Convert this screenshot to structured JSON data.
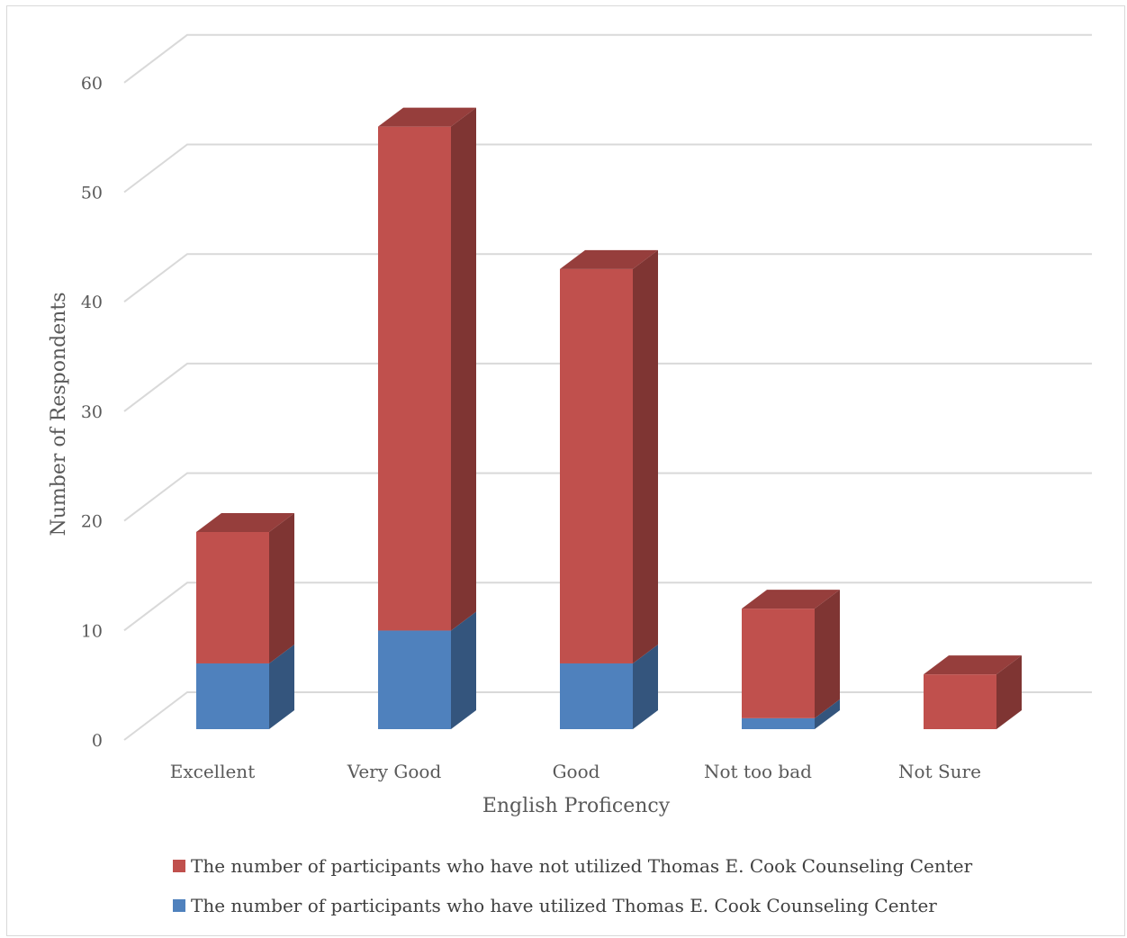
{
  "chart_data": {
    "type": "bar",
    "stacked": true,
    "three_d": true,
    "categories": [
      "Excellent",
      "Very Good",
      "Good",
      "Not too bad",
      "Not Sure"
    ],
    "series": [
      {
        "name": "The number of participants who have utilized Thomas E. Cook Counseling Center",
        "color": "#4f81bd",
        "values": [
          6,
          9,
          6,
          1,
          0
        ]
      },
      {
        "name": "The number of participants who have not utilized Thomas E. Cook Counseling Center",
        "color": "#c0504d",
        "values": [
          12,
          46,
          36,
          10,
          5
        ]
      }
    ],
    "xlabel": "English Proficency",
    "ylabel": "Number of Respondents",
    "ylim": [
      0,
      60
    ],
    "yticks": [
      "0",
      "10",
      "20",
      "30",
      "40",
      "50",
      "60"
    ],
    "grid": true,
    "legend_position": "bottom",
    "legend_order": [
      1,
      0
    ]
  }
}
